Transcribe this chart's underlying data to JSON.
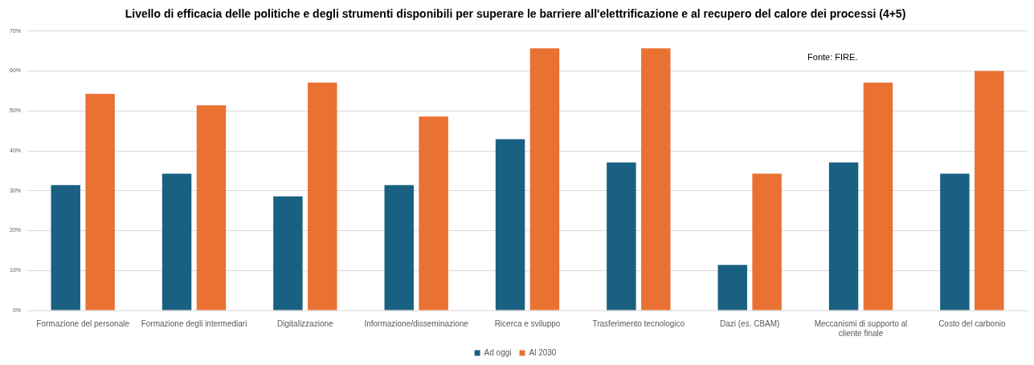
{
  "chart_data": {
    "type": "bar",
    "title": "Livello di efficacia delle politiche e degli strumenti disponibili per superare le barriere all'elettrificazione e al recupero del calore dei processi (4+5)",
    "categories": [
      "Formazione del personale",
      "Formazione degli intermediari",
      "Digitalizzazione",
      "Informazione/disseminazione",
      "Ricerca e sviluppo",
      "Trasferimento tecnologico",
      "Dazi (es. CBAM)",
      "Meccanismi di supporto al cliente finale",
      "Costo del carbonio"
    ],
    "series": [
      {
        "name": "Ad oggi",
        "color": "#1a6082",
        "values": [
          31.4,
          34.3,
          28.6,
          31.4,
          42.9,
          37.1,
          11.4,
          37.1,
          34.3
        ]
      },
      {
        "name": "Al 2030",
        "color": "#e97132",
        "values": [
          54.3,
          51.4,
          57.1,
          48.6,
          65.7,
          65.7,
          34.3,
          57.1,
          60.0
        ]
      }
    ],
    "ylim": [
      0,
      70
    ],
    "yticks": [
      {
        "value": 0,
        "label": "0%"
      },
      {
        "value": 10,
        "label": "10%"
      },
      {
        "value": 20,
        "label": "20%"
      },
      {
        "value": 30,
        "label": "30%"
      },
      {
        "value": 40,
        "label": "40%"
      },
      {
        "value": 50,
        "label": "50%"
      },
      {
        "value": 60,
        "label": "60%"
      },
      {
        "value": 70,
        "label": "70%"
      }
    ],
    "grid": "y",
    "legend": "bottom",
    "annotations": [
      "Fonte: FIRE."
    ]
  }
}
